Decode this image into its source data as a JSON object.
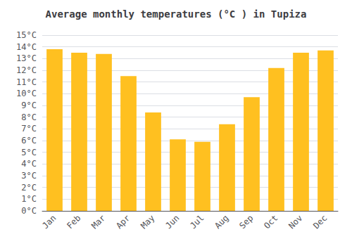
{
  "chart_data": {
    "type": "bar",
    "title": "Average monthly temperatures (°C ) in Tupiza",
    "categories": [
      "Jan",
      "Feb",
      "Mar",
      "Apr",
      "May",
      "Jun",
      "Jul",
      "Aug",
      "Sep",
      "Oct",
      "Nov",
      "Dec"
    ],
    "values": [
      13.8,
      13.5,
      13.4,
      11.5,
      8.4,
      6.1,
      5.9,
      7.4,
      9.7,
      12.2,
      13.5,
      13.7
    ],
    "color": "#FFC020",
    "ylim": [
      0,
      15
    ],
    "yticks": [
      {
        "value": 0,
        "label": "0°C"
      },
      {
        "value": 1,
        "label": "1°C"
      },
      {
        "value": 2,
        "label": "2°C"
      },
      {
        "value": 3,
        "label": "3°C"
      },
      {
        "value": 4,
        "label": "4°C"
      },
      {
        "value": 5,
        "label": "5°C"
      },
      {
        "value": 6,
        "label": "6°C"
      },
      {
        "value": 7,
        "label": "7°C"
      },
      {
        "value": 8,
        "label": "8°C"
      },
      {
        "value": 9,
        "label": "9°C"
      },
      {
        "value": 10,
        "label": "10°C"
      },
      {
        "value": 11,
        "label": "11°C"
      },
      {
        "value": 12,
        "label": "12°C"
      },
      {
        "value": 13,
        "label": "13°C"
      },
      {
        "value": 14,
        "label": "14°C"
      },
      {
        "value": 15,
        "label": "15°C"
      }
    ],
    "grid": true
  }
}
